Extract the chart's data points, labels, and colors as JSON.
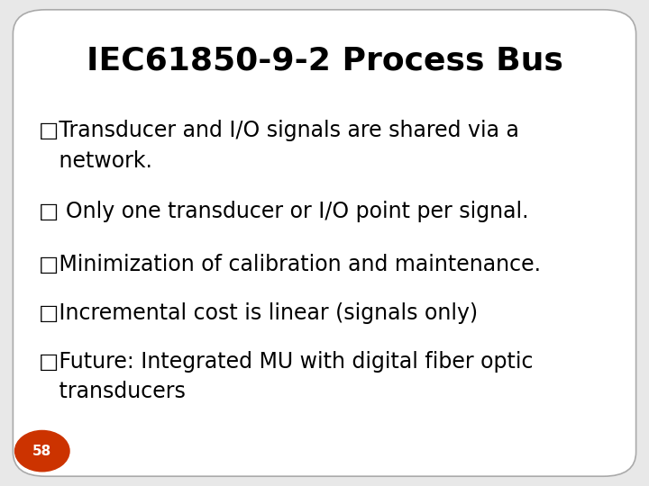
{
  "title": "IEC61850-9-2 Process Bus",
  "title_fontsize": 26,
  "title_fontweight": "bold",
  "bullet_lines": [
    "□Transducer and I/O signals are shared via a\n   network.",
    "□ Only one transducer or I/O point per signal.",
    "□Minimization of calibration and maintenance.",
    "□Incremental cost is linear (signals only)",
    "□Future: Integrated MU with digital fiber optic\n   transducers"
  ],
  "bullet_fontsize": 17,
  "bullet_color": "#000000",
  "bg_color": "#ffffff",
  "slide_bg": "#e8e8e8",
  "border_color": "#aaaaaa",
  "page_number": "58",
  "page_circle_color": "#cc3300",
  "page_text_color": "#ffffff",
  "page_fontsize": 11,
  "fig_width": 7.2,
  "fig_height": 5.4,
  "dpi": 100
}
